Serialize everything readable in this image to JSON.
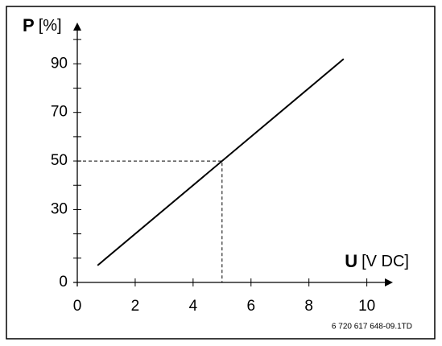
{
  "chart_data": {
    "type": "line",
    "y_label_symbol": "P",
    "y_label_unit": "[%]",
    "x_label_symbol": "U",
    "x_label_unit": "[V DC]",
    "footer": "6 720 617 648-09.1TD",
    "x": [
      0.7,
      9.2
    ],
    "series": [
      {
        "color": "#000000",
        "values": [
          7,
          92
        ]
      }
    ],
    "reference": {
      "x": 5,
      "y": 50
    },
    "xlim": [
      0,
      10.9
    ],
    "ylim": [
      0,
      107
    ],
    "xticks": [
      0,
      2,
      4,
      6,
      8,
      10
    ],
    "yticks": [
      0,
      30,
      50,
      70,
      90
    ],
    "yminorticks": [
      10,
      20,
      40,
      60,
      80,
      100
    ]
  }
}
